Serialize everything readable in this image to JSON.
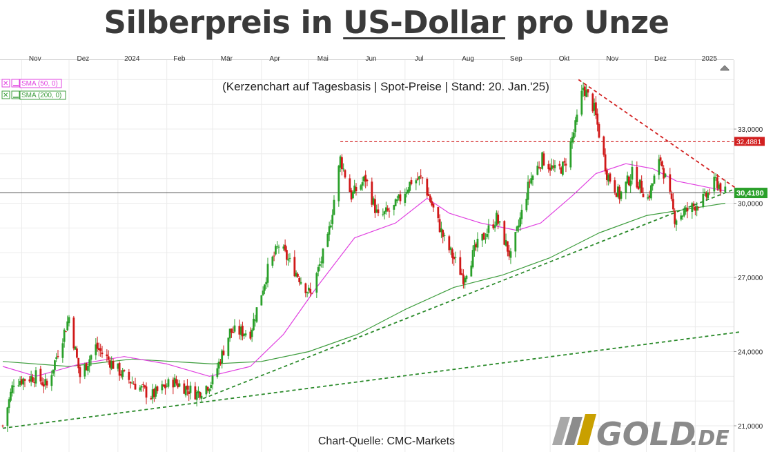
{
  "header": {
    "title_pre": "Silberpreis in ",
    "title_underlined": "US-Dollar",
    "title_post": " pro Unze"
  },
  "chart_data": {
    "type": "candlestick",
    "subtitle": "(Kerzenchart auf Tagesbasis | Spot-Preise | Stand: 20. Jan.'25)",
    "source": "Chart-Quelle: CMC-Markets",
    "x_ticks": [
      "Nov",
      "Dez",
      "2024",
      "Feb",
      "Mär",
      "Apr",
      "Mai",
      "Jun",
      "Jul",
      "Aug",
      "Sep",
      "Okt",
      "Nov",
      "Dez",
      "2025"
    ],
    "y_ticks": [
      "33,0000",
      "30,0000",
      "27,0000",
      "24,0000",
      "21,0000"
    ],
    "ylim": [
      20.9,
      35.9
    ],
    "grid": true,
    "legend": [
      "SMA (50, 0)",
      "SMA (200, 0)"
    ],
    "price_path": [
      [
        "2023-10-20",
        21.0
      ],
      [
        "2023-10-27",
        22.8
      ],
      [
        "2023-11-10",
        23.0
      ],
      [
        "2023-11-17",
        22.6
      ],
      [
        "2023-12-01",
        25.4
      ],
      [
        "2023-12-08",
        23.0
      ],
      [
        "2023-12-18",
        24.2
      ],
      [
        "2024-01-05",
        23.0
      ],
      [
        "2024-01-22",
        22.2
      ],
      [
        "2024-02-05",
        22.8
      ],
      [
        "2024-02-20",
        22.3
      ],
      [
        "2024-03-01",
        22.8
      ],
      [
        "2024-03-12",
        24.8
      ],
      [
        "2024-03-25",
        24.8
      ],
      [
        "2024-04-05",
        27.3
      ],
      [
        "2024-04-12",
        28.3
      ],
      [
        "2024-04-22",
        27.3
      ],
      [
        "2024-05-02",
        26.3
      ],
      [
        "2024-05-13",
        28.5
      ],
      [
        "2024-05-21",
        31.8
      ],
      [
        "2024-05-28",
        30.3
      ],
      [
        "2024-06-06",
        31.0
      ],
      [
        "2024-06-14",
        29.4
      ],
      [
        "2024-06-24",
        29.8
      ],
      [
        "2024-07-05",
        30.9
      ],
      [
        "2024-07-12",
        31.0
      ],
      [
        "2024-07-26",
        28.5
      ],
      [
        "2024-08-07",
        27.0
      ],
      [
        "2024-08-15",
        28.2
      ],
      [
        "2024-08-28",
        29.4
      ],
      [
        "2024-09-06",
        27.8
      ],
      [
        "2024-09-18",
        30.9
      ],
      [
        "2024-09-26",
        31.8
      ],
      [
        "2024-10-04",
        31.3
      ],
      [
        "2024-10-10",
        31.5
      ],
      [
        "2024-10-17",
        33.1
      ],
      [
        "2024-10-22",
        34.7
      ],
      [
        "2024-10-29",
        33.8
      ],
      [
        "2024-11-06",
        31.2
      ],
      [
        "2024-11-14",
        30.3
      ],
      [
        "2024-11-22",
        31.2
      ],
      [
        "2024-12-02",
        30.2
      ],
      [
        "2024-12-10",
        31.8
      ],
      [
        "2024-12-19",
        29.4
      ],
      [
        "2024-12-27",
        29.7
      ],
      [
        "2025-01-07",
        30.2
      ],
      [
        "2025-01-14",
        30.9
      ],
      [
        "2025-01-20",
        30.418
      ]
    ],
    "sma50": [
      [
        "2023-10-20",
        23.4
      ],
      [
        "2023-11-10",
        23.0
      ],
      [
        "2023-12-08",
        23.5
      ],
      [
        "2024-01-05",
        23.8
      ],
      [
        "2024-02-01",
        23.5
      ],
      [
        "2024-02-28",
        23.0
      ],
      [
        "2024-03-25",
        23.4
      ],
      [
        "2024-04-15",
        24.7
      ],
      [
        "2024-05-06",
        26.6
      ],
      [
        "2024-05-30",
        28.6
      ],
      [
        "2024-06-25",
        29.2
      ],
      [
        "2024-07-15",
        30.2
      ],
      [
        "2024-07-29",
        29.6
      ],
      [
        "2024-08-18",
        29.2
      ],
      [
        "2024-09-10",
        28.9
      ],
      [
        "2024-09-25",
        29.2
      ],
      [
        "2024-10-15",
        30.3
      ],
      [
        "2024-10-30",
        31.2
      ],
      [
        "2024-11-18",
        31.6
      ],
      [
        "2024-12-05",
        31.4
      ],
      [
        "2024-12-20",
        30.9
      ],
      [
        "2025-01-20",
        30.5
      ]
    ],
    "sma200": [
      [
        "2023-10-20",
        23.6
      ],
      [
        "2023-12-01",
        23.4
      ],
      [
        "2024-01-10",
        23.7
      ],
      [
        "2024-03-01",
        23.5
      ],
      [
        "2024-04-01",
        23.6
      ],
      [
        "2024-05-01",
        24.0
      ],
      [
        "2024-06-01",
        24.7
      ],
      [
        "2024-07-01",
        25.7
      ],
      [
        "2024-08-01",
        26.6
      ],
      [
        "2024-09-01",
        27.1
      ],
      [
        "2024-10-01",
        27.8
      ],
      [
        "2024-11-01",
        28.8
      ],
      [
        "2024-12-01",
        29.5
      ],
      [
        "2025-01-20",
        30.0
      ]
    ],
    "resistance_level": 32.4881,
    "resistance_label": "32,4881",
    "last_price": 30.418,
    "last_label": "30,4180",
    "trendlines": [
      {
        "from": [
          "2024-10-19",
          35.0
        ],
        "to": [
          "2025-01-27",
          30.6
        ],
        "color": "#d22020"
      },
      {
        "from": [
          "2024-02-24",
          22.1
        ],
        "to": [
          "2025-01-27",
          30.6
        ],
        "color": "#2a8a2a"
      },
      {
        "from": [
          "2023-10-20",
          20.9
        ],
        "to": [
          "2025-01-30",
          24.8
        ],
        "color": "#2a8a2a"
      }
    ],
    "colors": {
      "up": "#2aa02a",
      "down": "#d01818",
      "sma50": "#e040e0",
      "sma200": "#3c9c3c",
      "trend_red": "#d22020",
      "trend_green": "#2a8a2a"
    }
  },
  "logo": {
    "text_main": "GOLD",
    "text_suffix": ".DE"
  }
}
